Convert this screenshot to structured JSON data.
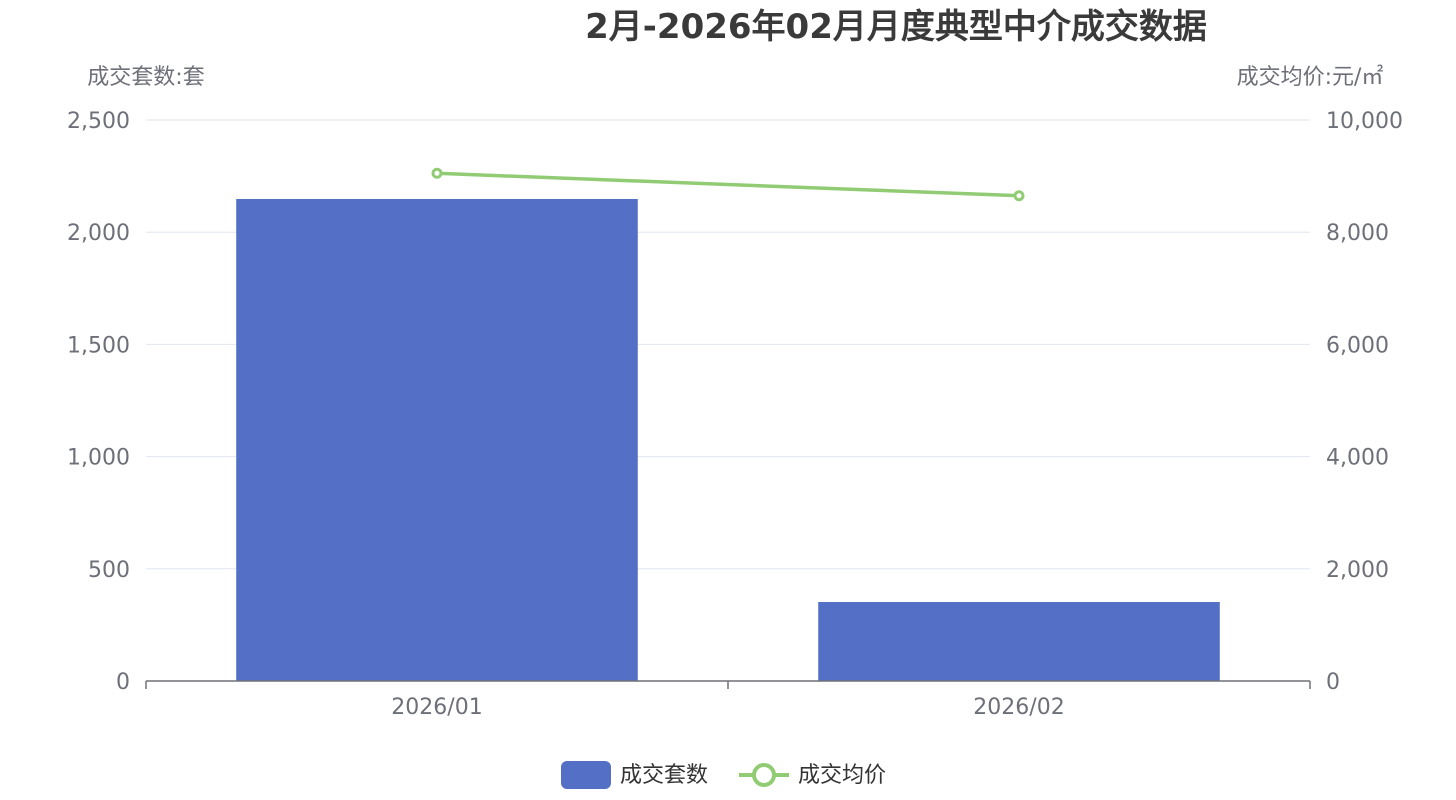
{
  "chart_data": {
    "type": "bar",
    "title": "2月-2026年02月月度典型中介成交数据",
    "categories": [
      "2026/01",
      "2026/02"
    ],
    "y_left": {
      "name": "成交套数:套",
      "min": 0,
      "max": 2500,
      "ticks": [
        0,
        500,
        1000,
        1500,
        2000,
        2500
      ],
      "tick_labels": [
        "0",
        "500",
        "1,000",
        "1,500",
        "2,000",
        "2,500"
      ]
    },
    "y_right": {
      "name": "成交均价:元/㎡",
      "min": 0,
      "max": 10000,
      "ticks": [
        0,
        2000,
        4000,
        6000,
        8000,
        10000
      ],
      "tick_labels": [
        "0",
        "2,000",
        "4,000",
        "6,000",
        "8,000",
        "10,000"
      ]
    },
    "grid": true,
    "legend_position": "bottom-center",
    "series": [
      {
        "name": "成交套数",
        "type": "bar",
        "axis": "left",
        "color": "#5470c6",
        "values": [
          2148,
          352
        ]
      },
      {
        "name": "成交均价",
        "type": "line",
        "axis": "right",
        "color": "#91cc75",
        "values": [
          9050,
          8650
        ]
      }
    ]
  }
}
